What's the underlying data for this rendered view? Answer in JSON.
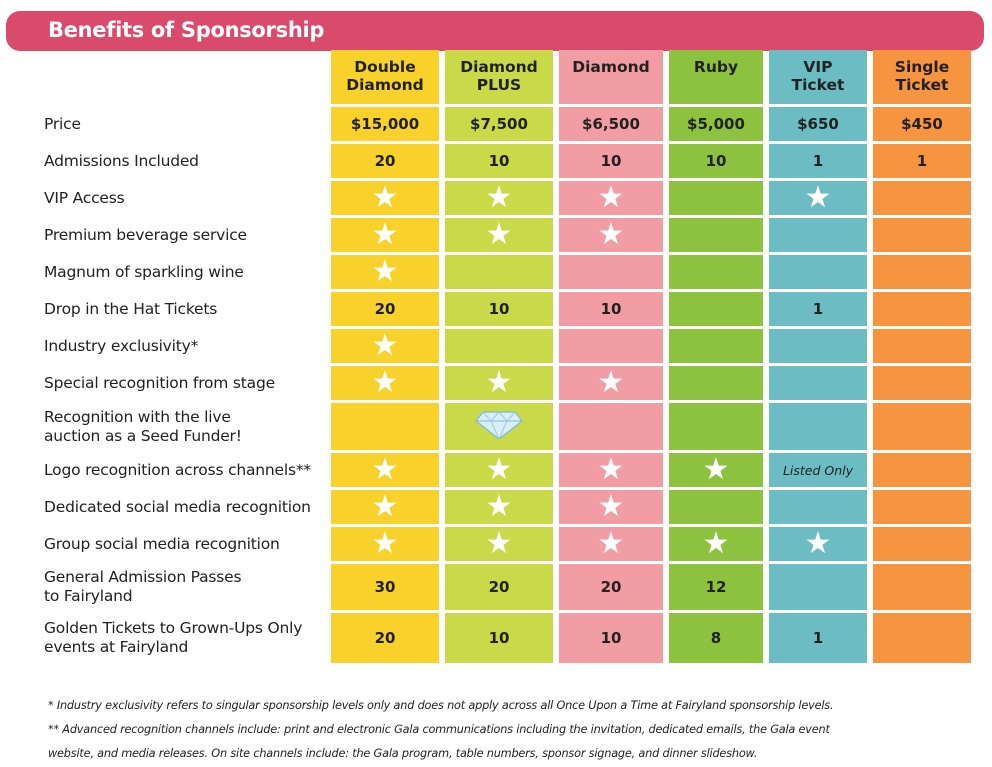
{
  "title": "Benefits of Sponsorship",
  "colors": [
    "#f9d12b",
    "#c9d948",
    "#f29ca3",
    "#8dc23f",
    "#6bbdc3",
    "#f7943f"
  ],
  "banner_color": "#d94a6b",
  "tiers": [
    {
      "line1": "Double",
      "line2": "Diamond"
    },
    {
      "line1": "Diamond",
      "line2": "PLUS"
    },
    {
      "line1": "Diamond",
      "line2": ""
    },
    {
      "line1": "Ruby",
      "line2": ""
    },
    {
      "line1": "VIP",
      "line2": "Ticket"
    },
    {
      "line1": "Single",
      "line2": "Ticket"
    }
  ],
  "rows": [
    {
      "label": "Price",
      "cells": [
        "$15,000",
        "$7,500",
        "$6,500",
        "$5,000",
        "$650",
        "$450"
      ]
    },
    {
      "label": "Admissions Included",
      "cells": [
        "20",
        "10",
        "10",
        "10",
        "1",
        "1"
      ]
    },
    {
      "label": "VIP Access",
      "cells": [
        "star-icon",
        "star-icon",
        "star-icon",
        "",
        "star-icon",
        ""
      ]
    },
    {
      "label": "Premium beverage service",
      "cells": [
        "star-icon",
        "star-icon",
        "star-icon",
        "",
        "",
        ""
      ]
    },
    {
      "label": "Magnum of sparkling wine",
      "cells": [
        "star-icon",
        "",
        "",
        "",
        "",
        ""
      ]
    },
    {
      "label": "Drop in the Hat Tickets",
      "cells": [
        "20",
        "10",
        "10",
        "",
        "1",
        ""
      ]
    },
    {
      "label": "Industry exclusivity*",
      "cells": [
        "star-icon",
        "",
        "",
        "",
        "",
        ""
      ]
    },
    {
      "label": "Special recognition from stage",
      "cells": [
        "star-icon",
        "star-icon",
        "star-icon",
        "",
        "",
        ""
      ]
    },
    {
      "label": "Recognition with the live\nauction as a Seed Funder!",
      "cells": [
        "",
        "diamond-icon",
        "",
        "",
        "",
        ""
      ]
    },
    {
      "label": "Logo recognition across channels**",
      "cells": [
        "star-icon",
        "star-icon",
        "star-icon",
        "star-icon",
        "Listed Only",
        ""
      ]
    },
    {
      "label": "Dedicated social media recognition",
      "cells": [
        "star-icon",
        "star-icon",
        "star-icon",
        "",
        "",
        ""
      ]
    },
    {
      "label": "Group social media recognition",
      "cells": [
        "star-icon",
        "star-icon",
        "star-icon",
        "star-icon",
        "star-icon",
        ""
      ]
    },
    {
      "label": "General Admission Passes\nto Fairyland",
      "cells": [
        "30",
        "20",
        "20",
        "12",
        "",
        ""
      ]
    },
    {
      "label": "Golden Tickets to Grown-Ups Only\nevents at Fairyland",
      "cells": [
        "20",
        "10",
        "10",
        "8",
        "1",
        ""
      ]
    }
  ],
  "notes": [
    "* Industry exclusivity refers to singular sponsorship levels only and does not apply across all Once Upon a Time at Fairyland sponsorship levels.",
    "** Advanced recognition channels include: print and electronic Gala communications including the invitation, dedicated emails, the Gala event",
    "website, and media releases. On site channels include: the Gala program, table numbers, sponsor signage, and dinner slideshow."
  ]
}
